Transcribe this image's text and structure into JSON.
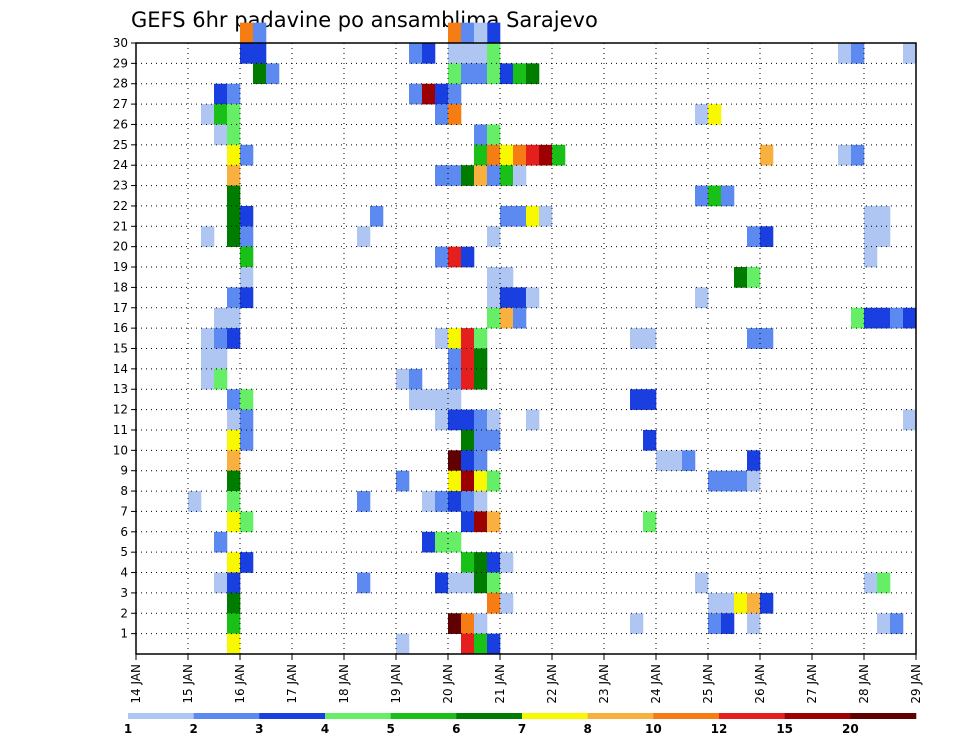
{
  "chart_data": {
    "type": "heatmap",
    "title": "GEFS 6hr padavine po ansamblima Sarajevo",
    "xlabel": "",
    "ylabel": "",
    "x_tick_labels": [
      "14 JAN",
      "15 JAN",
      "16 JAN",
      "17 JAN",
      "18 JAN",
      "19 JAN",
      "20 JAN",
      "21 JAN",
      "22 JAN",
      "23 JAN",
      "24 JAN",
      "25 JAN",
      "26 JAN",
      "27 JAN",
      "28 JAN",
      "29 JAN"
    ],
    "x_range": [
      "14 JAN",
      "29 JAN"
    ],
    "y_tick_labels": [
      "1",
      "2",
      "3",
      "4",
      "5",
      "6",
      "7",
      "8",
      "9",
      "10",
      "11",
      "12",
      "13",
      "14",
      "15",
      "16",
      "17",
      "18",
      "19",
      "20",
      "21",
      "22",
      "23",
      "24",
      "25",
      "26",
      "27",
      "28",
      "29",
      "30"
    ],
    "y_range": [
      0,
      30
    ],
    "grid": true,
    "time_step_hours": 6,
    "colorbar": {
      "labels": [
        "1",
        "2",
        "3",
        "4",
        "5",
        "6",
        "7",
        "8",
        "10",
        "12",
        "15",
        "20"
      ],
      "colors": [
        "#b0c6f2",
        "#5c8af0",
        "#1a3fe0",
        "#66ee66",
        "#18c018",
        "#007c00",
        "#f8f800",
        "#f8b040",
        "#f57d14",
        "#e51e1e",
        "#9c0000",
        "#600000"
      ]
    },
    "cells": [
      {
        "m": 30,
        "t": "16 JAN 00",
        "c": 9
      },
      {
        "m": 30,
        "t": "16 JAN 06",
        "c": 2
      },
      {
        "m": 30,
        "t": "20 JAN 18",
        "c": 3
      },
      {
        "m": 30,
        "t": "20 JAN 00",
        "c": 9
      },
      {
        "m": 30,
        "t": "20 JAN 06",
        "c": 2
      },
      {
        "m": 30,
        "t": "20 JAN 12",
        "c": 1
      },
      {
        "m": 29,
        "t": "16 JAN 00",
        "c": 3
      },
      {
        "m": 29,
        "t": "16 JAN 06",
        "c": 3
      },
      {
        "m": 29,
        "t": "19 JAN 06",
        "c": 2
      },
      {
        "m": 29,
        "t": "19 JAN 12",
        "c": 3
      },
      {
        "m": 29,
        "t": "20 JAN 00",
        "c": 1
      },
      {
        "m": 29,
        "t": "20 JAN 06",
        "c": 1
      },
      {
        "m": 29,
        "t": "20 JAN 12",
        "c": 1
      },
      {
        "m": 29,
        "t": "20 JAN 18",
        "c": 4
      },
      {
        "m": 29,
        "t": "27 JAN 12",
        "c": 1
      },
      {
        "m": 29,
        "t": "27 JAN 18",
        "c": 2
      },
      {
        "m": 29,
        "t": "28 JAN 18",
        "c": 1
      },
      {
        "m": 28,
        "t": "16 JAN 06",
        "c": 6
      },
      {
        "m": 28,
        "t": "16 JAN 12",
        "c": 2
      },
      {
        "m": 28,
        "t": "20 JAN 00",
        "c": 4
      },
      {
        "m": 28,
        "t": "20 JAN 06",
        "c": 2
      },
      {
        "m": 28,
        "t": "20 JAN 12",
        "c": 2
      },
      {
        "m": 28,
        "t": "20 JAN 18",
        "c": 4
      },
      {
        "m": 28,
        "t": "21 JAN 00",
        "c": 3
      },
      {
        "m": 28,
        "t": "21 JAN 06",
        "c": 5
      },
      {
        "m": 28,
        "t": "21 JAN 12",
        "c": 6
      },
      {
        "m": 27,
        "t": "15 JAN 12",
        "c": 3
      },
      {
        "m": 27,
        "t": "15 JAN 18",
        "c": 2
      },
      {
        "m": 27,
        "t": "19 JAN 06",
        "c": 2
      },
      {
        "m": 27,
        "t": "19 JAN 12",
        "c": 11
      },
      {
        "m": 27,
        "t": "19 JAN 18",
        "c": 3
      },
      {
        "m": 27,
        "t": "20 JAN 00",
        "c": 2
      },
      {
        "m": 26,
        "t": "15 JAN 06",
        "c": 1
      },
      {
        "m": 26,
        "t": "15 JAN 12",
        "c": 5
      },
      {
        "m": 26,
        "t": "15 JAN 18",
        "c": 4
      },
      {
        "m": 26,
        "t": "19 JAN 18",
        "c": 2
      },
      {
        "m": 26,
        "t": "20 JAN 00",
        "c": 9
      },
      {
        "m": 26,
        "t": "24 JAN 18",
        "c": 1
      },
      {
        "m": 26,
        "t": "25 JAN 00",
        "c": 7
      },
      {
        "m": 25,
        "t": "15 JAN 12",
        "c": 1
      },
      {
        "m": 25,
        "t": "15 JAN 18",
        "c": 4
      },
      {
        "m": 25,
        "t": "20 JAN 12",
        "c": 2
      },
      {
        "m": 25,
        "t": "20 JAN 18",
        "c": 4
      },
      {
        "m": 24,
        "t": "15 JAN 18",
        "c": 7
      },
      {
        "m": 24,
        "t": "16 JAN 00",
        "c": 2
      },
      {
        "m": 24,
        "t": "20 JAN 12",
        "c": 5
      },
      {
        "m": 24,
        "t": "20 JAN 18",
        "c": 9
      },
      {
        "m": 24,
        "t": "21 JAN 00",
        "c": 7
      },
      {
        "m": 24,
        "t": "21 JAN 06",
        "c": 9
      },
      {
        "m": 24,
        "t": "21 JAN 12",
        "c": 10
      },
      {
        "m": 24,
        "t": "21 JAN 18",
        "c": 11
      },
      {
        "m": 24,
        "t": "22 JAN 00",
        "c": 5
      },
      {
        "m": 24,
        "t": "26 JAN 00",
        "c": 8
      },
      {
        "m": 24,
        "t": "27 JAN 12",
        "c": 1
      },
      {
        "m": 24,
        "t": "27 JAN 18",
        "c": 2
      },
      {
        "m": 23,
        "t": "15 JAN 18",
        "c": 8
      },
      {
        "m": 23,
        "t": "19 JAN 18",
        "c": 2
      },
      {
        "m": 23,
        "t": "20 JAN 00",
        "c": 2
      },
      {
        "m": 23,
        "t": "20 JAN 06",
        "c": 6
      },
      {
        "m": 23,
        "t": "20 JAN 12",
        "c": 8
      },
      {
        "m": 23,
        "t": "20 JAN 18",
        "c": 2
      },
      {
        "m": 23,
        "t": "21 JAN 00",
        "c": 5
      },
      {
        "m": 23,
        "t": "21 JAN 06",
        "c": 1
      },
      {
        "m": 22,
        "t": "15 JAN 18",
        "c": 6
      },
      {
        "m": 22,
        "t": "24 JAN 18",
        "c": 2
      },
      {
        "m": 22,
        "t": "25 JAN 00",
        "c": 5
      },
      {
        "m": 22,
        "t": "25 JAN 06",
        "c": 2
      },
      {
        "m": 21,
        "t": "15 JAN 18",
        "c": 6
      },
      {
        "m": 21,
        "t": "16 JAN 00",
        "c": 3
      },
      {
        "m": 21,
        "t": "18 JAN 12",
        "c": 2
      },
      {
        "m": 21,
        "t": "21 JAN 00",
        "c": 2
      },
      {
        "m": 21,
        "t": "21 JAN 06",
        "c": 2
      },
      {
        "m": 21,
        "t": "21 JAN 12",
        "c": 7
      },
      {
        "m": 21,
        "t": "21 JAN 18",
        "c": 1
      },
      {
        "m": 21,
        "t": "28 JAN 00",
        "c": 1
      },
      {
        "m": 21,
        "t": "28 JAN 06",
        "c": 1
      },
      {
        "m": 20,
        "t": "15 JAN 06",
        "c": 1
      },
      {
        "m": 20,
        "t": "15 JAN 18",
        "c": 6
      },
      {
        "m": 20,
        "t": "16 JAN 00",
        "c": 2
      },
      {
        "m": 20,
        "t": "18 JAN 06",
        "c": 1
      },
      {
        "m": 20,
        "t": "20 JAN 18",
        "c": 1
      },
      {
        "m": 20,
        "t": "25 JAN 18",
        "c": 2
      },
      {
        "m": 20,
        "t": "26 JAN 00",
        "c": 3
      },
      {
        "m": 20,
        "t": "28 JAN 00",
        "c": 1
      },
      {
        "m": 20,
        "t": "28 JAN 06",
        "c": 1
      },
      {
        "m": 19,
        "t": "16 JAN 00",
        "c": 5
      },
      {
        "m": 19,
        "t": "19 JAN 18",
        "c": 2
      },
      {
        "m": 19,
        "t": "20 JAN 00",
        "c": 10
      },
      {
        "m": 19,
        "t": "20 JAN 06",
        "c": 3
      },
      {
        "m": 19,
        "t": "28 JAN 00",
        "c": 1
      },
      {
        "m": 18,
        "t": "16 JAN 00",
        "c": 1
      },
      {
        "m": 18,
        "t": "20 JAN 18",
        "c": 1
      },
      {
        "m": 18,
        "t": "21 JAN 00",
        "c": 1
      },
      {
        "m": 18,
        "t": "25 JAN 12",
        "c": 6
      },
      {
        "m": 18,
        "t": "25 JAN 18",
        "c": 4
      },
      {
        "m": 17,
        "t": "15 JAN 18",
        "c": 2
      },
      {
        "m": 17,
        "t": "16 JAN 00",
        "c": 3
      },
      {
        "m": 17,
        "t": "20 JAN 18",
        "c": 1
      },
      {
        "m": 17,
        "t": "21 JAN 00",
        "c": 3
      },
      {
        "m": 17,
        "t": "21 JAN 06",
        "c": 3
      },
      {
        "m": 17,
        "t": "21 JAN 12",
        "c": 1
      },
      {
        "m": 17,
        "t": "24 JAN 18",
        "c": 1
      },
      {
        "m": 16,
        "t": "15 JAN 12",
        "c": 1
      },
      {
        "m": 16,
        "t": "15 JAN 18",
        "c": 1
      },
      {
        "m": 16,
        "t": "20 JAN 18",
        "c": 4
      },
      {
        "m": 16,
        "t": "21 JAN 00",
        "c": 8
      },
      {
        "m": 16,
        "t": "21 JAN 06",
        "c": 2
      },
      {
        "m": 16,
        "t": "27 JAN 18",
        "c": 4
      },
      {
        "m": 16,
        "t": "28 JAN 00",
        "c": 3
      },
      {
        "m": 16,
        "t": "28 JAN 06",
        "c": 3
      },
      {
        "m": 16,
        "t": "28 JAN 12",
        "c": 2
      },
      {
        "m": 16,
        "t": "28 JAN 18",
        "c": 3
      },
      {
        "m": 15,
        "t": "15 JAN 06",
        "c": 1
      },
      {
        "m": 15,
        "t": "15 JAN 12",
        "c": 2
      },
      {
        "m": 15,
        "t": "15 JAN 18",
        "c": 3
      },
      {
        "m": 15,
        "t": "19 JAN 18",
        "c": 1
      },
      {
        "m": 15,
        "t": "20 JAN 00",
        "c": 7
      },
      {
        "m": 15,
        "t": "20 JAN 06",
        "c": 10
      },
      {
        "m": 15,
        "t": "20 JAN 12",
        "c": 4
      },
      {
        "m": 15,
        "t": "23 JAN 12",
        "c": 1
      },
      {
        "m": 15,
        "t": "23 JAN 18",
        "c": 1
      },
      {
        "m": 15,
        "t": "25 JAN 18",
        "c": 2
      },
      {
        "m": 15,
        "t": "26 JAN 00",
        "c": 2
      },
      {
        "m": 14,
        "t": "15 JAN 06",
        "c": 1
      },
      {
        "m": 14,
        "t": "15 JAN 12",
        "c": 1
      },
      {
        "m": 14,
        "t": "20 JAN 00",
        "c": 2
      },
      {
        "m": 14,
        "t": "20 JAN 06",
        "c": 10
      },
      {
        "m": 14,
        "t": "20 JAN 12",
        "c": 6
      },
      {
        "m": 13,
        "t": "15 JAN 06",
        "c": 1
      },
      {
        "m": 13,
        "t": "15 JAN 12",
        "c": 4
      },
      {
        "m": 13,
        "t": "19 JAN 00",
        "c": 1
      },
      {
        "m": 13,
        "t": "19 JAN 06",
        "c": 2
      },
      {
        "m": 13,
        "t": "20 JAN 00",
        "c": 2
      },
      {
        "m": 13,
        "t": "20 JAN 06",
        "c": 10
      },
      {
        "m": 13,
        "t": "20 JAN 12",
        "c": 6
      },
      {
        "m": 12,
        "t": "15 JAN 18",
        "c": 2
      },
      {
        "m": 12,
        "t": "16 JAN 00",
        "c": 4
      },
      {
        "m": 12,
        "t": "19 JAN 06",
        "c": 1
      },
      {
        "m": 12,
        "t": "19 JAN 12",
        "c": 1
      },
      {
        "m": 12,
        "t": "19 JAN 18",
        "c": 1
      },
      {
        "m": 12,
        "t": "20 JAN 00",
        "c": 1
      },
      {
        "m": 12,
        "t": "23 JAN 12",
        "c": 3
      },
      {
        "m": 12,
        "t": "23 JAN 18",
        "c": 3
      },
      {
        "m": 11,
        "t": "15 JAN 18",
        "c": 1
      },
      {
        "m": 11,
        "t": "16 JAN 00",
        "c": 2
      },
      {
        "m": 11,
        "t": "19 JAN 18",
        "c": 1
      },
      {
        "m": 11,
        "t": "20 JAN 00",
        "c": 3
      },
      {
        "m": 11,
        "t": "20 JAN 06",
        "c": 3
      },
      {
        "m": 11,
        "t": "20 JAN 12",
        "c": 2
      },
      {
        "m": 11,
        "t": "20 JAN 18",
        "c": 1
      },
      {
        "m": 11,
        "t": "21 JAN 12",
        "c": 1
      },
      {
        "m": 11,
        "t": "28 JAN 18",
        "c": 1
      },
      {
        "m": 10,
        "t": "15 JAN 18",
        "c": 7
      },
      {
        "m": 10,
        "t": "16 JAN 00",
        "c": 2
      },
      {
        "m": 10,
        "t": "20 JAN 06",
        "c": 6
      },
      {
        "m": 10,
        "t": "20 JAN 12",
        "c": 2
      },
      {
        "m": 10,
        "t": "20 JAN 18",
        "c": 2
      },
      {
        "m": 10,
        "t": "23 JAN 18",
        "c": 3
      },
      {
        "m": 9,
        "t": "15 JAN 18",
        "c": 8
      },
      {
        "m": 9,
        "t": "20 JAN 00",
        "c": 12
      },
      {
        "m": 9,
        "t": "20 JAN 06",
        "c": 3
      },
      {
        "m": 9,
        "t": "20 JAN 12",
        "c": 2
      },
      {
        "m": 9,
        "t": "24 JAN 00",
        "c": 1
      },
      {
        "m": 9,
        "t": "24 JAN 06",
        "c": 1
      },
      {
        "m": 9,
        "t": "24 JAN 12",
        "c": 2
      },
      {
        "m": 9,
        "t": "25 JAN 18",
        "c": 3
      },
      {
        "m": 8,
        "t": "15 JAN 18",
        "c": 6
      },
      {
        "m": 8,
        "t": "19 JAN 00",
        "c": 2
      },
      {
        "m": 8,
        "t": "20 JAN 00",
        "c": 7
      },
      {
        "m": 8,
        "t": "20 JAN 06",
        "c": 11
      },
      {
        "m": 8,
        "t": "20 JAN 12",
        "c": 7
      },
      {
        "m": 8,
        "t": "20 JAN 18",
        "c": 4
      },
      {
        "m": 8,
        "t": "25 JAN 00",
        "c": 2
      },
      {
        "m": 8,
        "t": "25 JAN 06",
        "c": 2
      },
      {
        "m": 8,
        "t": "25 JAN 12",
        "c": 2
      },
      {
        "m": 8,
        "t": "25 JAN 18",
        "c": 1
      },
      {
        "m": 7,
        "t": "15 JAN 00",
        "c": 1
      },
      {
        "m": 7,
        "t": "15 JAN 18",
        "c": 4
      },
      {
        "m": 7,
        "t": "18 JAN 06",
        "c": 2
      },
      {
        "m": 7,
        "t": "19 JAN 12",
        "c": 1
      },
      {
        "m": 7,
        "t": "19 JAN 18",
        "c": 2
      },
      {
        "m": 7,
        "t": "20 JAN 00",
        "c": 3
      },
      {
        "m": 7,
        "t": "20 JAN 06",
        "c": 2
      },
      {
        "m": 7,
        "t": "20 JAN 12",
        "c": 1
      },
      {
        "m": 6,
        "t": "15 JAN 18",
        "c": 7
      },
      {
        "m": 6,
        "t": "16 JAN 00",
        "c": 4
      },
      {
        "m": 6,
        "t": "20 JAN 06",
        "c": 3
      },
      {
        "m": 6,
        "t": "20 JAN 12",
        "c": 11
      },
      {
        "m": 6,
        "t": "20 JAN 18",
        "c": 8
      },
      {
        "m": 6,
        "t": "23 JAN 18",
        "c": 4
      },
      {
        "m": 5,
        "t": "15 JAN 12",
        "c": 2
      },
      {
        "m": 5,
        "t": "19 JAN 12",
        "c": 3
      },
      {
        "m": 5,
        "t": "19 JAN 18",
        "c": 4
      },
      {
        "m": 5,
        "t": "20 JAN 00",
        "c": 4
      },
      {
        "m": 4,
        "t": "15 JAN 18",
        "c": 7
      },
      {
        "m": 4,
        "t": "16 JAN 00",
        "c": 3
      },
      {
        "m": 4,
        "t": "20 JAN 06",
        "c": 5
      },
      {
        "m": 4,
        "t": "20 JAN 12",
        "c": 6
      },
      {
        "m": 4,
        "t": "20 JAN 18",
        "c": 3
      },
      {
        "m": 4,
        "t": "21 JAN 00",
        "c": 1
      },
      {
        "m": 3,
        "t": "15 JAN 12",
        "c": 1
      },
      {
        "m": 3,
        "t": "15 JAN 18",
        "c": 3
      },
      {
        "m": 3,
        "t": "18 JAN 06",
        "c": 2
      },
      {
        "m": 3,
        "t": "19 JAN 18",
        "c": 3
      },
      {
        "m": 3,
        "t": "20 JAN 00",
        "c": 1
      },
      {
        "m": 3,
        "t": "20 JAN 06",
        "c": 1
      },
      {
        "m": 3,
        "t": "20 JAN 12",
        "c": 6
      },
      {
        "m": 3,
        "t": "20 JAN 18",
        "c": 4
      },
      {
        "m": 3,
        "t": "24 JAN 18",
        "c": 1
      },
      {
        "m": 3,
        "t": "28 JAN 00",
        "c": 1
      },
      {
        "m": 3,
        "t": "28 JAN 06",
        "c": 4
      },
      {
        "m": 2,
        "t": "15 JAN 18",
        "c": 6
      },
      {
        "m": 2,
        "t": "20 JAN 18",
        "c": 9
      },
      {
        "m": 2,
        "t": "21 JAN 00",
        "c": 1
      },
      {
        "m": 2,
        "t": "25 JAN 00",
        "c": 1
      },
      {
        "m": 2,
        "t": "25 JAN 06",
        "c": 1
      },
      {
        "m": 2,
        "t": "25 JAN 12",
        "c": 7
      },
      {
        "m": 2,
        "t": "25 JAN 18",
        "c": 8
      },
      {
        "m": 2,
        "t": "26 JAN 00",
        "c": 3
      },
      {
        "m": 1,
        "t": "15 JAN 18",
        "c": 5
      },
      {
        "m": 1,
        "t": "20 JAN 00",
        "c": 12
      },
      {
        "m": 1,
        "t": "20 JAN 06",
        "c": 9
      },
      {
        "m": 1,
        "t": "20 JAN 12",
        "c": 1
      },
      {
        "m": 1,
        "t": "23 JAN 12",
        "c": 1
      },
      {
        "m": 1,
        "t": "25 JAN 00",
        "c": 2
      },
      {
        "m": 1,
        "t": "25 JAN 06",
        "c": 3
      },
      {
        "m": 1,
        "t": "25 JAN 18",
        "c": 1
      },
      {
        "m": 1,
        "t": "28 JAN 06",
        "c": 1
      },
      {
        "m": 1,
        "t": "28 JAN 12",
        "c": 2
      },
      {
        "m": 0,
        "t": "15 JAN 18",
        "c": 7
      },
      {
        "m": 0,
        "t": "19 JAN 00",
        "c": 1
      },
      {
        "m": 0,
        "t": "20 JAN 06",
        "c": 10
      },
      {
        "m": 0,
        "t": "20 JAN 12",
        "c": 5
      },
      {
        "m": 0,
        "t": "20 JAN 18",
        "c": 3
      }
    ]
  }
}
